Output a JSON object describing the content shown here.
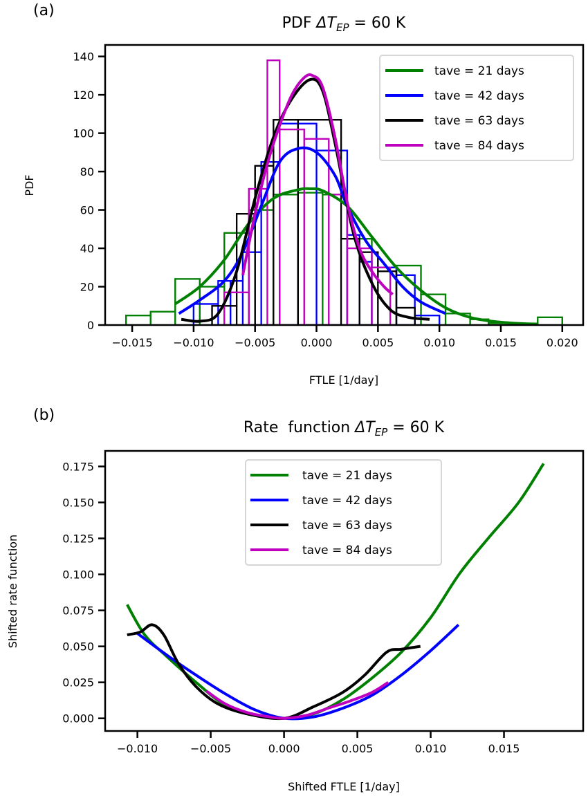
{
  "figure": {
    "panels": [
      "(a)",
      "(b)"
    ]
  },
  "chart_data": [
    {
      "type": "line",
      "panel_label": "(a)",
      "title_prefix": "PDF ",
      "title_delta": "ΔT",
      "title_sub": "EP",
      "title_suffix": " = 60 K",
      "xlabel": "FTLE [1/day]",
      "ylabel": "PDF",
      "xlim": [
        -0.0172,
        0.0217
      ],
      "ylim": [
        0,
        146
      ],
      "xticks": [
        -0.015,
        -0.01,
        -0.005,
        0.0,
        0.005,
        0.01,
        0.015,
        0.02
      ],
      "xtick_labels": [
        "−0.015",
        "−0.010",
        "−0.005",
        "0.000",
        "0.005",
        "0.010",
        "0.015",
        "0.020"
      ],
      "yticks": [
        0,
        20,
        40,
        60,
        80,
        100,
        120,
        140
      ],
      "ytick_labels": [
        "0",
        "20",
        "40",
        "60",
        "80",
        "100",
        "120",
        "140"
      ],
      "grid": false,
      "legend_position": "top-right",
      "series": [
        {
          "name": "tave = 21 days",
          "color": "#008000",
          "histogram": {
            "edges": [
              -0.0155,
              -0.0135,
              -0.0115,
              -0.0095,
              -0.0075,
              -0.0055,
              -0.0035,
              -0.0015,
              0.0005,
              0.0025,
              0.0045,
              0.0065,
              0.0085,
              0.0105,
              0.0125,
              0.014,
              0.016,
              0.018,
              0.02
            ],
            "values": [
              5,
              7,
              24,
              20,
              48,
              60,
              68,
              69,
              68,
              45,
              30,
              31,
              16,
              6,
              3,
              1,
              0.5,
              4
            ]
          },
          "kde": {
            "x": [
              -0.0115,
              -0.0095,
              -0.0075,
              -0.0055,
              -0.0035,
              -0.0015,
              -0.0005,
              0.0005,
              0.0025,
              0.0045,
              0.0065,
              0.0085,
              0.0105,
              0.0125,
              0.0145,
              0.0165,
              0.018
            ],
            "y": [
              11,
              20,
              34,
              53,
              66,
              70.5,
              71,
              70,
              62,
              46,
              30,
              18,
              9,
              4,
              1.8,
              0.8,
              0.5
            ]
          }
        },
        {
          "name": "tave = 42 days",
          "color": "#0000ff",
          "histogram": {
            "edges": [
              -0.01,
              -0.008,
              -0.007,
              -0.006,
              -0.0045,
              -0.003,
              -0.0015,
              0.0,
              0.0025,
              0.0035,
              0.0045,
              0.0065,
              0.008,
              0.01
            ],
            "values": [
              11,
              23,
              23,
              38,
              85,
              105,
              105,
              91,
              47,
              33,
              30,
              26,
              5
            ],
            "note": "approximate bins read from outline"
          },
          "kde": {
            "x": [
              -0.0112,
              -0.0095,
              -0.0075,
              -0.006,
              -0.0045,
              -0.003,
              -0.0015,
              0.0,
              0.0015,
              0.0025,
              0.004,
              0.0055,
              0.007,
              0.0085,
              0.0105
            ],
            "y": [
              6,
              13,
              23,
              38,
              62,
              85,
              92,
              90,
              78,
              62,
              44,
              32,
              20,
              12,
              6
            ]
          }
        },
        {
          "name": "tave = 63 days",
          "color": "#000000",
          "histogram": {
            "edges": [
              -0.0085,
              -0.0065,
              -0.005,
              -0.0035,
              -0.0015,
              0.002,
              0.0035,
              0.005,
              0.0065,
              0.008
            ],
            "values": [
              10,
              58,
              83,
              107,
              107,
              45,
              38,
              28,
              9
            ],
            "note": "approximate bins read from outline"
          },
          "kde": {
            "x": [
              -0.011,
              -0.0095,
              -0.008,
              -0.0065,
              -0.005,
              -0.0035,
              -0.002,
              -0.0005,
              0.0005,
              0.0015,
              0.003,
              0.0045,
              0.006,
              0.0075,
              0.0092
            ],
            "y": [
              3,
              2,
              6,
              28,
              66,
              98,
              118,
              128,
              122,
              95,
              48,
              22,
              8,
              4,
              3
            ]
          }
        },
        {
          "name": "tave = 84 days",
          "color": "#bf00bf",
          "histogram": {
            "edges": [
              -0.0075,
              -0.0055,
              -0.004,
              -0.003,
              -0.001,
              0.001,
              0.0025,
              0.0045,
              0.006
            ],
            "values": [
              17,
              71,
              138,
              102,
              97,
              68,
              40,
              30
            ],
            "note": "approximate bins read from outline"
          },
          "kde": {
            "x": [
              -0.006,
              -0.005,
              -0.004,
              -0.003,
              -0.002,
              -0.001,
              -0.0003,
              0.0005,
              0.0015,
              0.0025,
              0.0035,
              0.0045,
              0.0055,
              0.0062
            ],
            "y": [
              26,
              58,
              84,
              104,
              120,
              129,
              130,
              124,
              98,
              64,
              40,
              28,
              20,
              16
            ]
          }
        }
      ]
    },
    {
      "type": "line",
      "panel_label": "(b)",
      "title_prefix": "Rate  function ",
      "title_delta": "ΔT",
      "title_sub": "EP",
      "title_suffix": " = 60 K",
      "xlabel": "Shifted FTLE [1/day]",
      "ylabel": "Shifted rate function",
      "xlim": [
        -0.0122,
        0.0204
      ],
      "ylim": [
        -0.0088,
        0.1858
      ],
      "xticks": [
        -0.01,
        -0.005,
        0.0,
        0.005,
        0.01,
        0.015
      ],
      "xtick_labels": [
        "−0.010",
        "−0.005",
        "0.000",
        "0.005",
        "0.010",
        "0.015"
      ],
      "yticks": [
        0.0,
        0.025,
        0.05,
        0.075,
        0.1,
        0.125,
        0.15,
        0.175
      ],
      "ytick_labels": [
        "0.000",
        "0.025",
        "0.050",
        "0.075",
        "0.100",
        "0.125",
        "0.150",
        "0.175"
      ],
      "grid": false,
      "legend_position": "top-center",
      "series": [
        {
          "name": "tave = 21 days",
          "color": "#008000",
          "x": [
            -0.0107,
            -0.0095,
            -0.008,
            -0.006,
            -0.004,
            -0.002,
            0.0,
            0.002,
            0.004,
            0.006,
            0.008,
            0.01,
            0.012,
            0.014,
            0.016,
            0.0177
          ],
          "y": [
            0.079,
            0.058,
            0.043,
            0.025,
            0.009,
            0.002,
            0.0,
            0.003,
            0.013,
            0.028,
            0.046,
            0.07,
            0.101,
            0.126,
            0.15,
            0.177
          ]
        },
        {
          "name": "tave = 42 days",
          "color": "#0000ff",
          "x": [
            -0.01,
            -0.008,
            -0.006,
            -0.004,
            -0.002,
            0.0,
            0.002,
            0.004,
            0.006,
            0.008,
            0.01,
            0.0119
          ],
          "y": [
            0.059,
            0.044,
            0.03,
            0.017,
            0.006,
            0.0,
            0.001,
            0.007,
            0.016,
            0.03,
            0.047,
            0.065
          ]
        },
        {
          "name": "tave = 63 days",
          "color": "#000000",
          "x": [
            -0.0107,
            -0.0098,
            -0.009,
            -0.0082,
            -0.0072,
            -0.006,
            -0.0045,
            -0.0025,
            0.0,
            0.002,
            0.004,
            0.0055,
            0.007,
            0.008,
            0.0093
          ],
          "y": [
            0.058,
            0.06,
            0.065,
            0.058,
            0.038,
            0.022,
            0.01,
            0.003,
            0.0,
            0.008,
            0.018,
            0.03,
            0.046,
            0.048,
            0.05
          ]
        },
        {
          "name": "tave = 84 days",
          "color": "#bf00bf",
          "x": [
            -0.0053,
            -0.004,
            -0.0025,
            -0.001,
            0.0,
            0.0015,
            0.003,
            0.0045,
            0.006,
            0.0071
          ],
          "y": [
            0.019,
            0.01,
            0.004,
            0.001,
            0.0,
            0.002,
            0.007,
            0.012,
            0.018,
            0.025
          ]
        }
      ]
    }
  ]
}
